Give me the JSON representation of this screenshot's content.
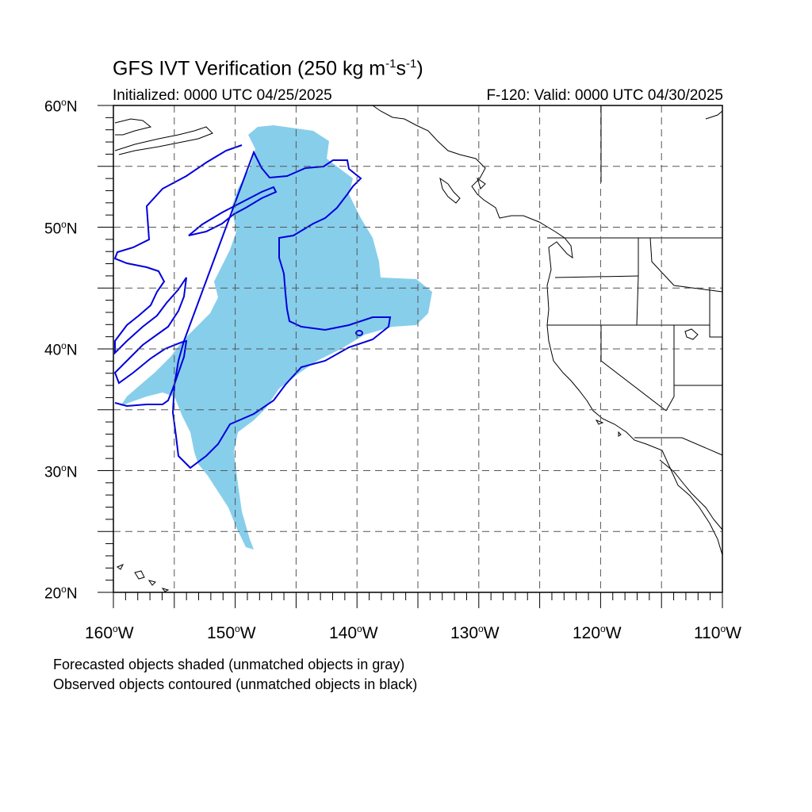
{
  "title": {
    "text": "GFS IVT Verification (250 kg m",
    "exp1": "-1",
    "mid": "s",
    "exp2": "-1",
    "close": ")"
  },
  "initialized": "Initialized: 0000 UTC 04/25/2025",
  "valid": "F-120: Valid: 0000 UTC 04/30/2025",
  "lat_labels": [
    "60",
    "50",
    "40",
    "30",
    "20"
  ],
  "lat_suffix": "N",
  "lon_labels": [
    "160",
    "150",
    "140",
    "130",
    "120",
    "110"
  ],
  "lon_suffix": "W",
  "degree_symbol": "o",
  "legend_notes": {
    "line1": "Forecasted objects shaded (unmatched objects in gray)",
    "line2": "Observed objects contoured (unmatched objects in black)"
  },
  "colors": {
    "forecast_fill": "#87ceeb",
    "observed_contour": "#0000dd",
    "coastline": "#000000",
    "grid": "#555555"
  },
  "map_extent": {
    "lon_min": -160,
    "lon_max": -110,
    "lat_min": 20,
    "lat_max": 60
  }
}
